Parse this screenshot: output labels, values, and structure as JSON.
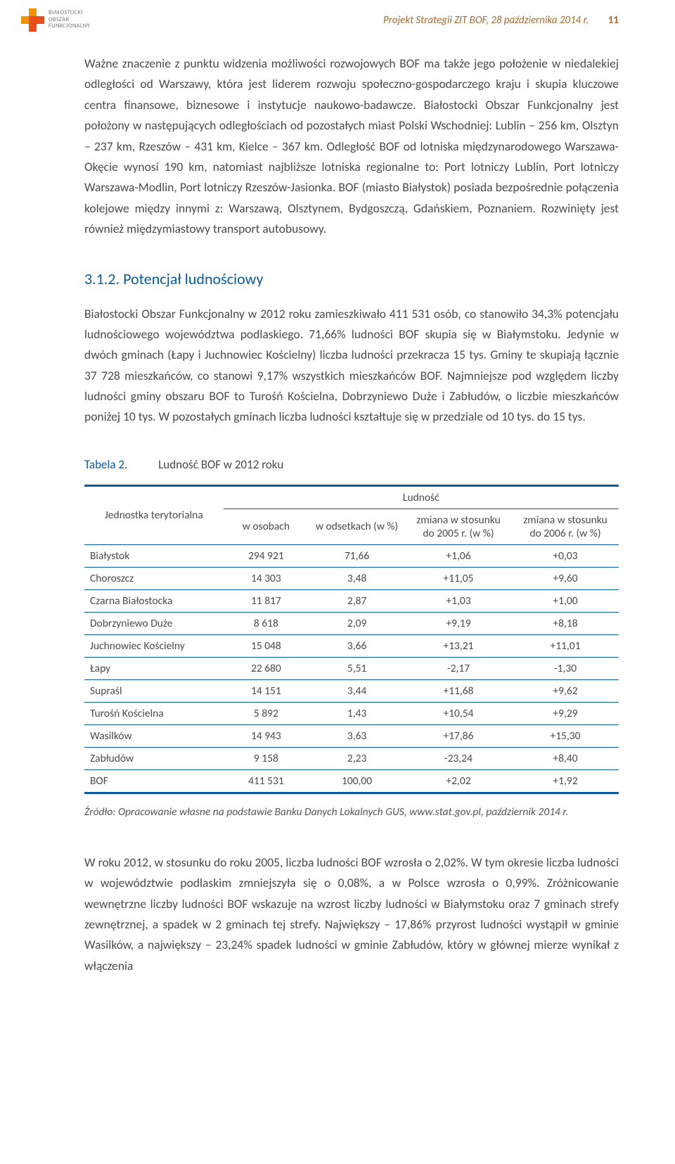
{
  "header": {
    "title": "Projekt Strategii ZIT BOF,  28 października 2014 r.",
    "page": "11"
  },
  "logo": {
    "line1": "BIAŁOSTOCKI",
    "line2": "OBSZAR",
    "line3": "FUNKCJONALNY",
    "colors": [
      "#ffffff",
      "#f29200",
      "#ffffff",
      "#f29200",
      "#e84e1b",
      "#e84e1b",
      "#ffffff",
      "#e84e1b",
      "#ffffff"
    ]
  },
  "para1": "Ważne znaczenie z punktu widzenia możliwości rozwojowych BOF ma także jego położenie w niedalekiej odległości od Warszawy, która jest liderem rozwoju społeczno-gospodarczego kraju i skupia kluczowe centra finansowe, biznesowe i instytucje naukowo-badawcze. Białostocki Obszar Funkcjonalny jest położony w następujących odległościach od pozostałych miast Polski Wschodniej: Lublin – 256 km, Olsztyn – 237 km, Rzeszów – 431 km, Kielce – 367 km. Odległość BOF od lotniska międzynarodowego Warszawa-Okęcie wynosi 190 km, natomiast najbliższe lotniska regionalne to: Port lotniczy Lublin, Port lotniczy Warszawa-Modlin, Port lotniczy Rzeszów-Jasionka. BOF (miasto Białystok) posiada bezpośrednie połączenia kolejowe między innymi z: Warszawą, Olsztynem, Bydgoszczą, Gdańskiem, Poznaniem. Rozwinięty jest również międzymiastowy transport autobusowy.",
  "section": {
    "number": "3.1.2.",
    "title": "Potencjał ludnościowy"
  },
  "para2": "Białostocki Obszar Funkcjonalny w 2012 roku zamieszkiwało 411 531 osób, co stanowiło 34,3% potencjału ludnościowego województwa podlaskiego. 71,66% ludności BOF skupia się w Białymstoku. Jedynie w dwóch gminach (Łapy i Juchnowiec Kościelny) liczba ludności przekracza 15 tys. Gminy te skupiają łącznie 37 728 mieszkańców, co stanowi 9,17% wszystkich mieszkańców BOF. Najmniejsze pod względem liczby ludności gminy obszaru BOF to Turośń Kościelna, Dobrzyniewo Duże i Zabłudów, o liczbie mieszkańców poniżej 10 tys. W pozostałych gminach liczba ludności kształtuje się w przedziale od 10 tys. do 15 tys.",
  "table": {
    "caption_label": "Tabela 2.",
    "caption_title": "Ludność BOF w 2012 roku",
    "head": {
      "unit": "Jednostka terytorialna",
      "group": "Ludność",
      "cols": [
        "w osobach",
        "w odsetkach (w %)",
        "zmiana w stosunku do 2005 r. (w %)",
        "zmiana w stosunku do 2006 r. (w %)"
      ]
    },
    "rows": [
      [
        "Białystok",
        "294 921",
        "71,66",
        "+1,06",
        "+0,03"
      ],
      [
        "Choroszcz",
        "14 303",
        "3,48",
        "+11,05",
        "+9,60"
      ],
      [
        "Czarna Białostocka",
        "11 817",
        "2,87",
        "+1,03",
        "+1,00"
      ],
      [
        "Dobrzyniewo Duże",
        "8 618",
        "2,09",
        "+9,19",
        "+8,18"
      ],
      [
        "Juchnowiec Kościelny",
        "15 048",
        "3,66",
        "+13,21",
        "+11,01"
      ],
      [
        "Łapy",
        "22 680",
        "5,51",
        "-2,17",
        "-1,30"
      ],
      [
        "Supraśl",
        "14 151",
        "3,44",
        "+11,68",
        "+9,62"
      ],
      [
        "Turośń Kościelna",
        "5 892",
        "1,43",
        "+10,54",
        "+9,29"
      ],
      [
        "Wasilków",
        "14 943",
        "3,63",
        "+17,86",
        "+15,30"
      ],
      [
        "Zabłudów",
        "9 158",
        "2,23",
        "-23,24",
        "+8,40"
      ],
      [
        "BOF",
        "411 531",
        "100,00",
        "+2,02",
        "+1,92"
      ]
    ]
  },
  "source": "Źródło: Opracowanie własne na podstawie Banku Danych Lokalnych GUS, www.stat.gov.pl, październik 2014 r.",
  "para3": "W roku 2012, w stosunku do roku 2005, liczba ludności BOF wzrosła o 2,02%. W tym okresie liczba ludności w województwie podlaskim zmniejszyła się o 0,08%, a w Polsce wzrosła o 0,99%. Zróżnicowanie wewnętrzne liczby ludności BOF wskazuje na wzrost liczby ludności w Białymstoku oraz 7 gminach strefy zewnętrznej, a spadek w 2 gminach tej strefy. Największy – 17,86% przyrost ludności wystąpił w gminie Wasilków, a największy – 23,24% spadek ludności w gminie Zabłudów, który w głównej mierze wynikał z włączenia"
}
